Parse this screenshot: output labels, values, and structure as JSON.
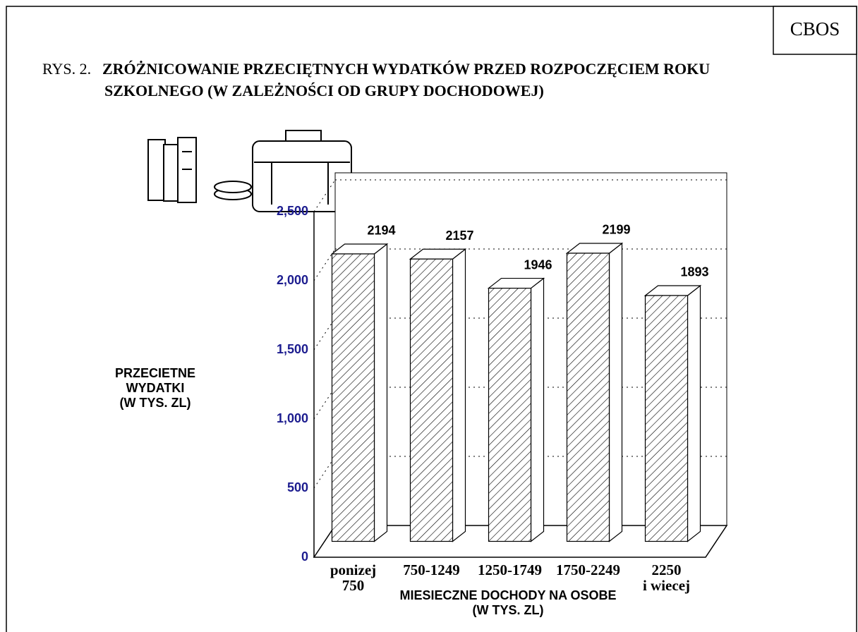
{
  "header": {
    "source": "CBOS"
  },
  "chart_data": {
    "type": "bar3d",
    "title_prefix": "RYS. 2.",
    "title": [
      "ZRÓŻNICOWANIE PRZECIĘTNYCH WYDATKÓW PRZED ROZPOCZĘCIEM ROKU",
      "SZKOLNEGO (W ZALEŻNOŚCI OD GRUPY DOCHODOWEJ)"
    ],
    "y_label": [
      "PRZECIETNE",
      "WYDATKI",
      "(W TYS. ZL)"
    ],
    "x_label": [
      "MIESIECZNE DOCHODY NA OSOBE",
      "(W TYS. ZL)"
    ],
    "categories": [
      [
        "ponizej",
        "750"
      ],
      [
        "750-1249"
      ],
      [
        "1250-1749"
      ],
      [
        "1750-2249"
      ],
      [
        "2250",
        "i wiecej"
      ]
    ],
    "values": [
      2194,
      2157,
      1946,
      2199,
      1893
    ],
    "color": "#000000",
    "tick_color": "#1c1c8f",
    "ylim": [
      0,
      2500
    ],
    "yticks": [
      0,
      500,
      {
        "value": 1000,
        "label": "1,000"
      },
      {
        "value": 1500,
        "label": "1,500"
      },
      {
        "value": 2000,
        "label": "2,000"
      },
      {
        "value": 2500,
        "label": "2,500"
      }
    ],
    "grid": true
  }
}
